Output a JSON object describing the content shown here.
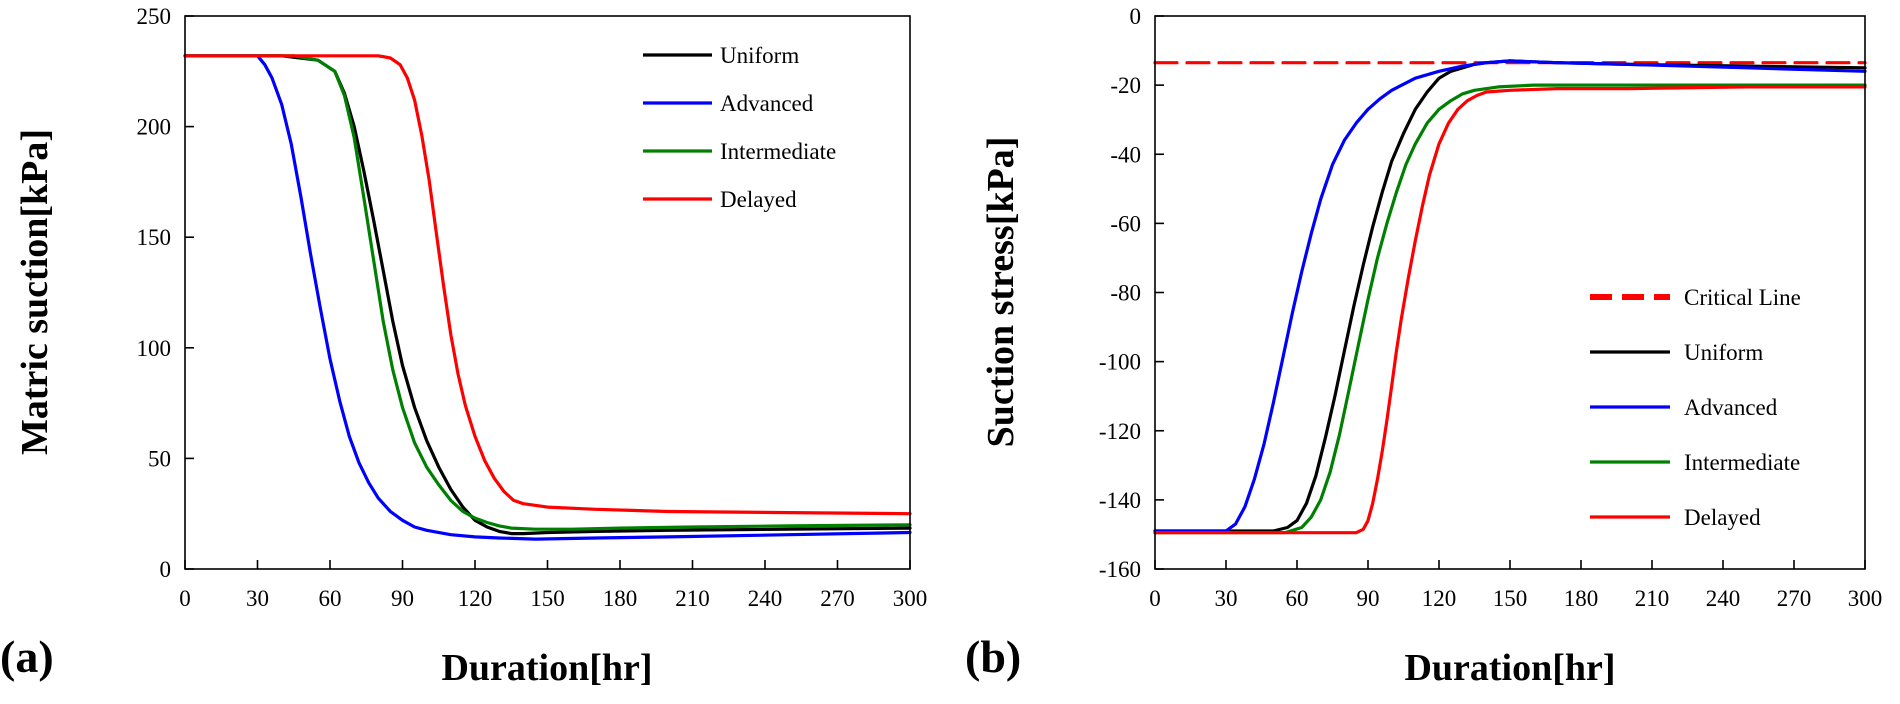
{
  "chart_data": [
    {
      "type": "line",
      "panel_label": "(a)",
      "title": "",
      "xlabel": "Duration[hr]",
      "ylabel": "Matric suction[kPa]",
      "xlim": [
        0,
        300
      ],
      "ylim": [
        0,
        250
      ],
      "xticks": [
        0,
        30,
        60,
        90,
        120,
        150,
        180,
        210,
        240,
        270,
        300
      ],
      "yticks": [
        0,
        50,
        100,
        150,
        200,
        250
      ],
      "grid": false,
      "legend_position": "top-right",
      "series": [
        {
          "name": "Uniform",
          "color": "#000000",
          "dashed": false,
          "x": [
            0,
            40,
            55,
            62,
            66,
            70,
            74,
            78,
            82,
            86,
            90,
            95,
            100,
            105,
            110,
            115,
            120,
            125,
            130,
            135,
            140,
            150,
            170,
            200,
            250,
            300
          ],
          "y": [
            232,
            232,
            230,
            225,
            215,
            200,
            180,
            158,
            135,
            112,
            92,
            73,
            58,
            46,
            36,
            28,
            22,
            19,
            17,
            16,
            16,
            16.5,
            17,
            17.5,
            18,
            18.5
          ]
        },
        {
          "name": "Advanced",
          "color": "#0000ff",
          "dashed": false,
          "x": [
            0,
            30,
            33,
            36,
            40,
            44,
            48,
            52,
            56,
            60,
            64,
            68,
            72,
            76,
            80,
            85,
            90,
            95,
            100,
            110,
            120,
            130,
            145,
            170,
            200,
            250,
            300
          ],
          "y": [
            232,
            232,
            228,
            222,
            210,
            192,
            168,
            142,
            118,
            95,
            76,
            60,
            48,
            39,
            32,
            26,
            22,
            19,
            17.5,
            15.5,
            14.5,
            14,
            13.5,
            14,
            14.5,
            15.5,
            16.5
          ]
        },
        {
          "name": "Intermediate",
          "color": "#008000",
          "dashed": false,
          "x": [
            0,
            45,
            55,
            62,
            66,
            70,
            74,
            78,
            82,
            86,
            90,
            95,
            100,
            105,
            110,
            115,
            120,
            125,
            130,
            135,
            145,
            160,
            180,
            210,
            250,
            300
          ],
          "y": [
            232,
            232,
            230,
            225,
            214,
            195,
            168,
            140,
            112,
            90,
            73,
            57,
            46,
            38,
            31,
            26,
            23,
            21,
            19.5,
            18.5,
            18,
            18,
            18.5,
            19,
            19.5,
            20
          ]
        },
        {
          "name": "Delayed",
          "color": "#ff0000",
          "dashed": false,
          "x": [
            0,
            80,
            85,
            89,
            92,
            95,
            98,
            101,
            104,
            107,
            110,
            113,
            116,
            120,
            124,
            128,
            132,
            136,
            140,
            150,
            170,
            200,
            250,
            300
          ],
          "y": [
            232,
            232,
            231,
            228,
            222,
            212,
            196,
            176,
            152,
            128,
            106,
            88,
            74,
            60,
            49,
            41,
            35,
            31,
            29.5,
            28,
            27,
            26,
            25.5,
            25
          ]
        }
      ],
      "legend": [
        "Uniform",
        "Advanced",
        "Intermediate",
        "Delayed"
      ]
    },
    {
      "type": "line",
      "panel_label": "(b)",
      "title": "",
      "xlabel": "Duration[hr]",
      "ylabel": "Suction stress[kPa]",
      "xlim": [
        0,
        300
      ],
      "ylim": [
        -160,
        0
      ],
      "xticks": [
        0,
        30,
        60,
        90,
        120,
        150,
        180,
        210,
        240,
        270,
        300
      ],
      "yticks": [
        0,
        -20,
        -40,
        -60,
        -80,
        -100,
        -120,
        -140,
        -160
      ],
      "grid": false,
      "legend_position": "right",
      "series": [
        {
          "name": "Critical Line",
          "color": "#ff0000",
          "dashed": true,
          "x": [
            0,
            300
          ],
          "y": [
            -13.5,
            -13.5
          ]
        },
        {
          "name": "Uniform",
          "color": "#000000",
          "dashed": false,
          "x": [
            0,
            50,
            56,
            60,
            64,
            68,
            72,
            76,
            80,
            84,
            88,
            92,
            96,
            100,
            105,
            110,
            115,
            120,
            125,
            130,
            135,
            140,
            150,
            170,
            200,
            250,
            300
          ],
          "y": [
            -149,
            -149,
            -148,
            -146,
            -141,
            -133,
            -122,
            -110,
            -97,
            -84,
            -72,
            -61,
            -51,
            -42,
            -34,
            -27,
            -22,
            -18,
            -16,
            -15,
            -14,
            -13.5,
            -13,
            -13.5,
            -14,
            -14.5,
            -15
          ]
        },
        {
          "name": "Advanced",
          "color": "#0000ff",
          "dashed": false,
          "x": [
            0,
            30,
            34,
            38,
            42,
            46,
            50,
            54,
            58,
            62,
            66,
            70,
            75,
            80,
            85,
            90,
            95,
            100,
            110,
            120,
            130,
            140,
            150,
            170,
            200,
            250,
            300
          ],
          "y": [
            -149,
            -149,
            -147,
            -142,
            -134,
            -124,
            -112,
            -99,
            -86,
            -74,
            -63,
            -53,
            -43,
            -36,
            -31,
            -27,
            -24,
            -21.5,
            -18,
            -16,
            -14.5,
            -13.5,
            -13,
            -13.5,
            -14,
            -15,
            -16
          ]
        },
        {
          "name": "Intermediate",
          "color": "#008000",
          "dashed": false,
          "x": [
            0,
            55,
            62,
            66,
            70,
            74,
            78,
            82,
            86,
            90,
            94,
            98,
            102,
            106,
            110,
            115,
            120,
            125,
            130,
            135,
            145,
            160,
            180,
            210,
            250,
            300
          ],
          "y": [
            -149.5,
            -149.5,
            -148,
            -145,
            -140,
            -132,
            -121,
            -108,
            -95,
            -82,
            -70,
            -60,
            -51,
            -43,
            -37,
            -31,
            -27,
            -24.5,
            -22.5,
            -21.5,
            -20.5,
            -20,
            -20,
            -20,
            -20,
            -20
          ]
        },
        {
          "name": "Delayed",
          "color": "#ff0000",
          "dashed": false,
          "x": [
            0,
            85,
            88,
            90,
            92,
            94,
            96,
            98,
            100,
            102,
            104,
            107,
            110,
            113,
            116,
            120,
            124,
            128,
            132,
            136,
            140,
            150,
            170,
            200,
            250,
            300
          ],
          "y": [
            -149.5,
            -149.5,
            -148.5,
            -146,
            -141,
            -134,
            -126,
            -117,
            -107,
            -97,
            -88,
            -76,
            -65,
            -55,
            -46,
            -37,
            -31,
            -27,
            -24.5,
            -23,
            -22,
            -21.5,
            -21,
            -21,
            -20.5,
            -20.5
          ]
        }
      ],
      "legend": [
        "Critical Line",
        "Uniform",
        "Advanced",
        "Intermediate",
        "Delayed"
      ]
    }
  ]
}
